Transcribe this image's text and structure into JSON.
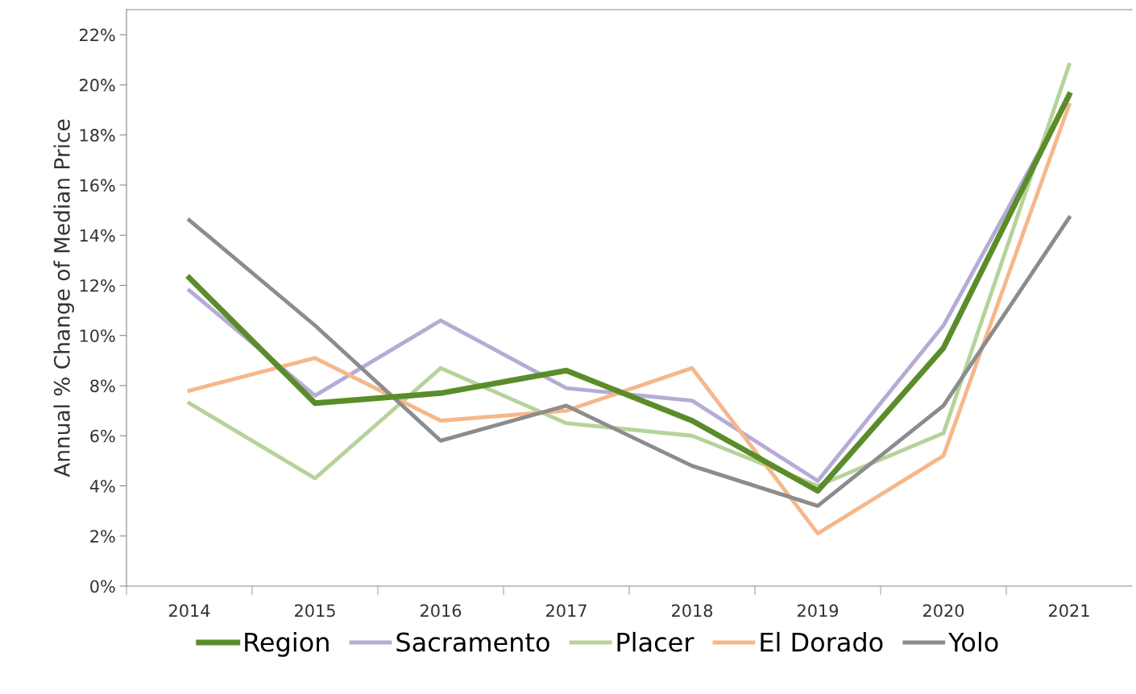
{
  "chart_data": {
    "type": "line",
    "ylabel": "Annual % Change of Median Price",
    "categories": [
      "2014",
      "2015",
      "2016",
      "2017",
      "2018",
      "2019",
      "2020",
      "2021"
    ],
    "series": [
      {
        "name": "Region",
        "color": "#5b8c2a",
        "values": [
          12.3,
          7.3,
          7.7,
          8.6,
          6.6,
          3.8,
          9.5,
          19.6
        ]
      },
      {
        "name": "Sacramento",
        "color": "#b4acd6",
        "values": [
          11.8,
          7.6,
          10.6,
          7.9,
          7.4,
          4.2,
          10.4,
          19.5
        ]
      },
      {
        "name": "Placer",
        "color": "#b5d39a",
        "values": [
          7.3,
          4.3,
          8.7,
          6.5,
          6.0,
          4.0,
          6.1,
          20.8
        ]
      },
      {
        "name": "El Dorado",
        "color": "#f5b88a",
        "values": [
          7.8,
          9.1,
          6.6,
          7.0,
          8.7,
          2.1,
          5.2,
          19.2
        ]
      },
      {
        "name": "Yolo",
        "color": "#8c8c8c",
        "values": [
          14.6,
          10.4,
          5.8,
          7.2,
          4.8,
          3.2,
          7.2,
          14.7
        ]
      }
    ],
    "ylim": [
      0,
      23
    ],
    "yticks": [
      {
        "value": 0,
        "label": "0%"
      },
      {
        "value": 2,
        "label": "2%"
      },
      {
        "value": 4,
        "label": "4%"
      },
      {
        "value": 6,
        "label": "6%"
      },
      {
        "value": 8,
        "label": "8%"
      },
      {
        "value": 10,
        "label": "10%"
      },
      {
        "value": 12,
        "label": "12%"
      },
      {
        "value": 14,
        "label": "14%"
      },
      {
        "value": 16,
        "label": "16%"
      },
      {
        "value": 18,
        "label": "18%"
      },
      {
        "value": 20,
        "label": "20%"
      },
      {
        "value": 22,
        "label": "22%"
      }
    ],
    "grid": false,
    "legend": "bottom",
    "line_style": "solid",
    "marker": "none"
  }
}
